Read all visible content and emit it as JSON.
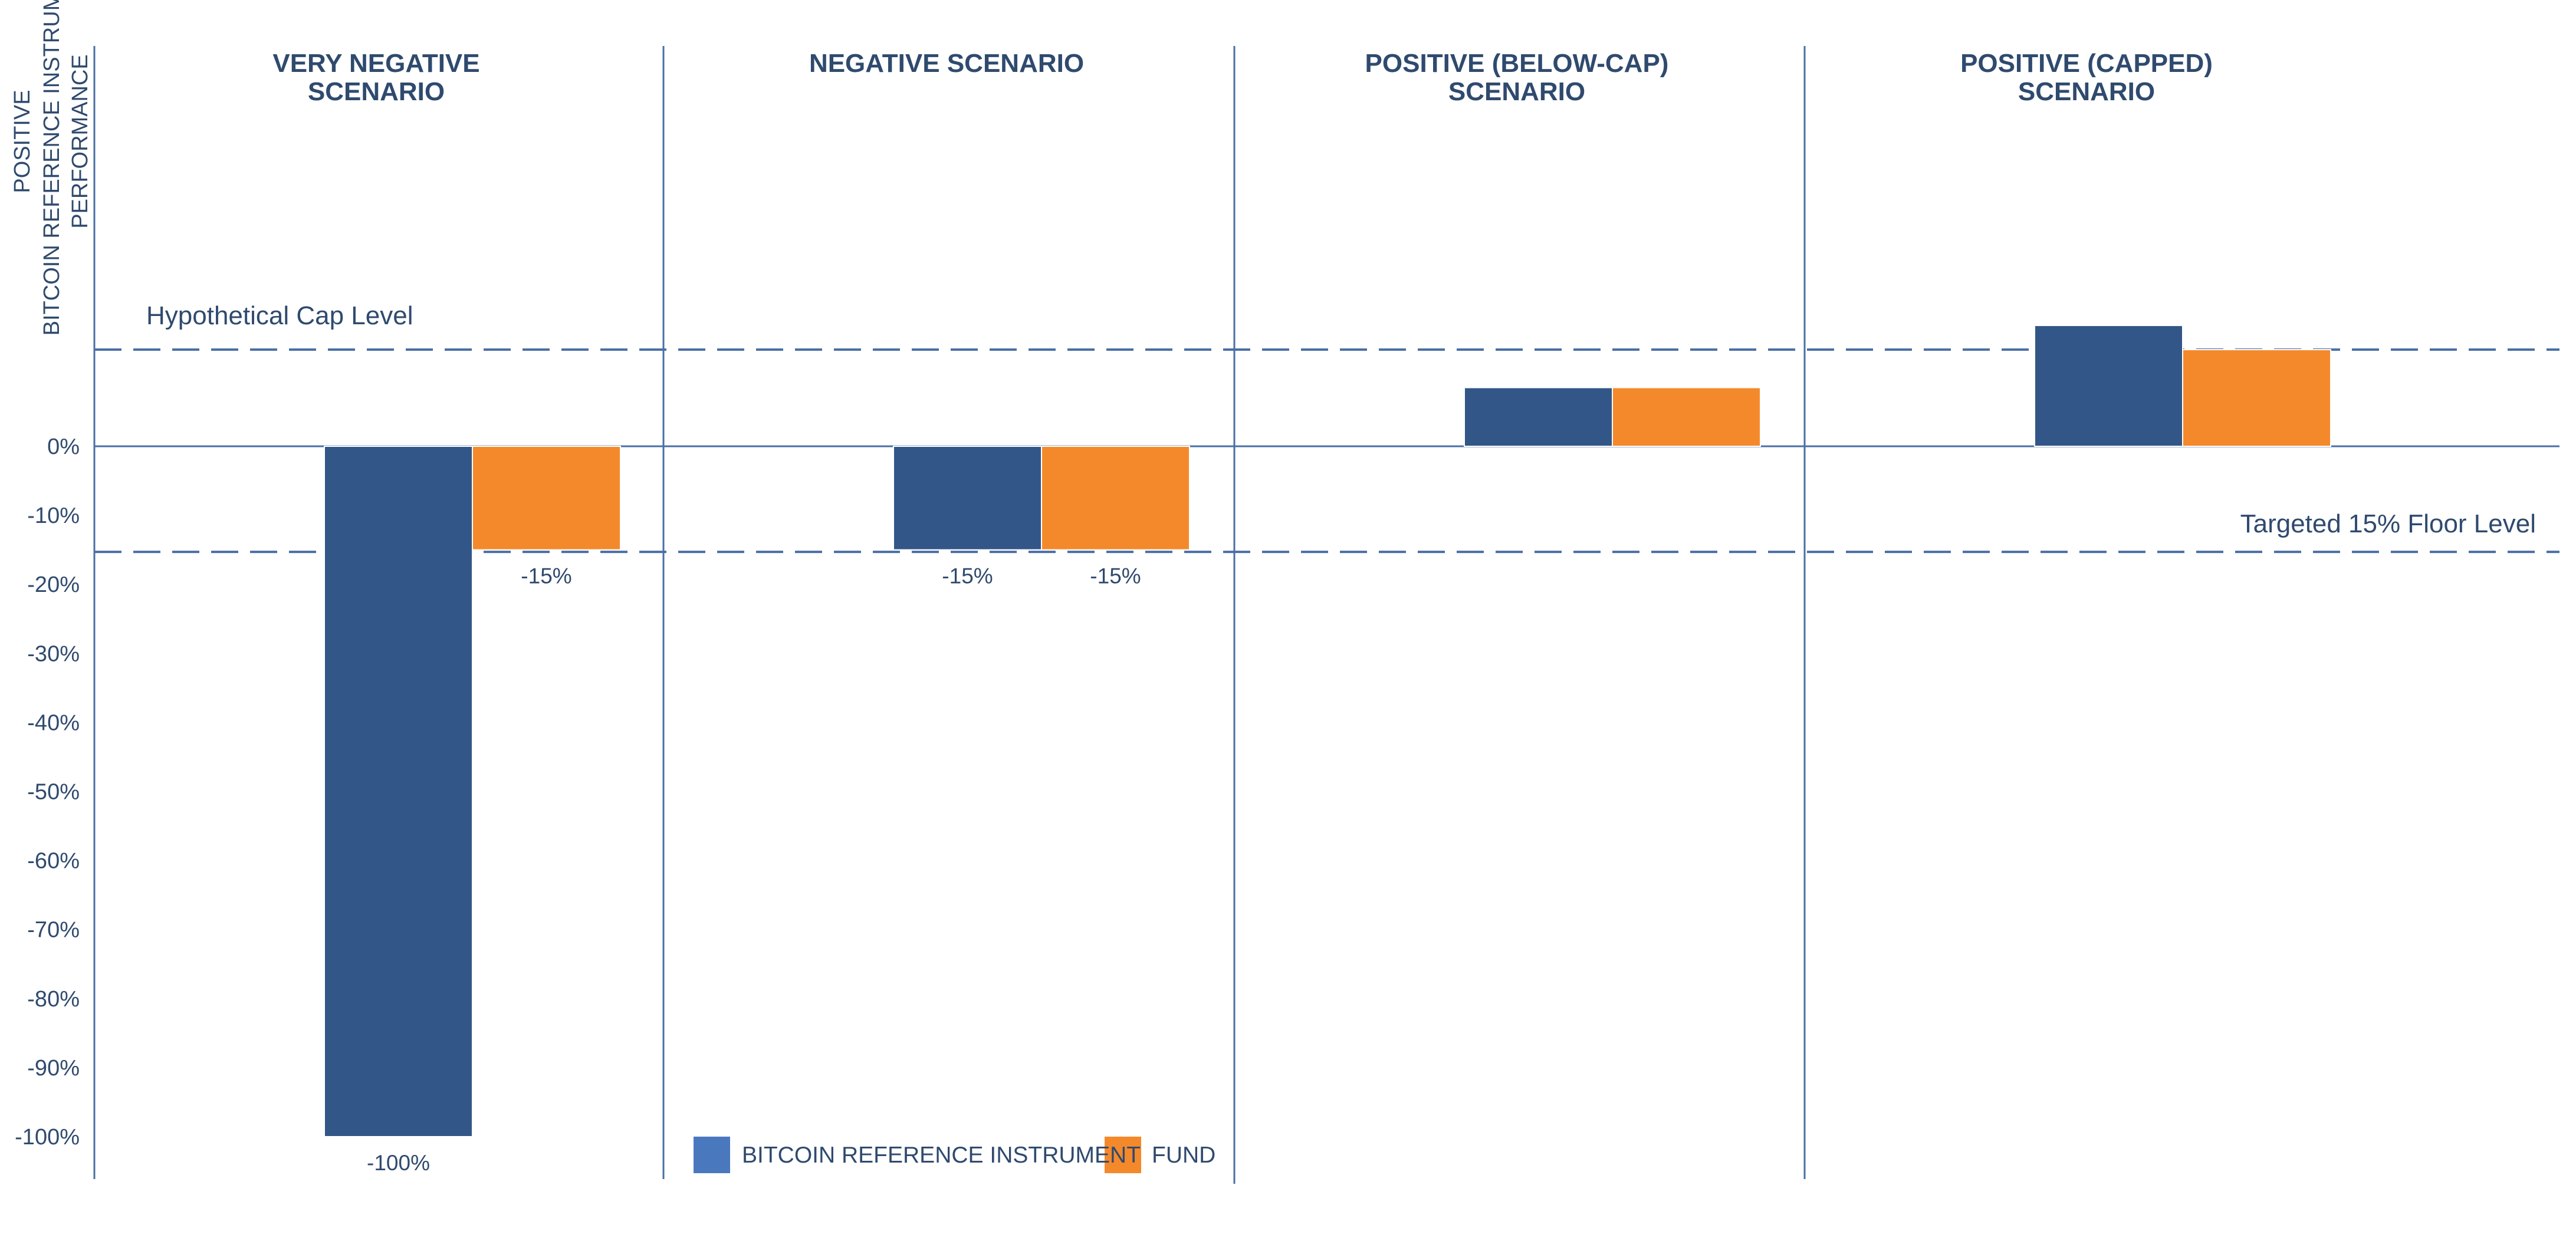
{
  "chart_data": {
    "type": "bar",
    "ylabel_lines": [
      "POSITIVE",
      "BITCOIN REFERENCE INSTRUMENT",
      "PERFORMANCE"
    ],
    "y_ticks": [
      "0%",
      "-10%",
      "-20%",
      "-30%",
      "-40%",
      "-50%",
      "-60%",
      "-70%",
      "-80%",
      "-90%",
      "-100%"
    ],
    "ylim": [
      -100,
      20
    ],
    "categories": [
      {
        "title_lines": [
          "VERY NEGATIVE",
          "SCENARIO"
        ]
      },
      {
        "title_lines": [
          "NEGATIVE SCENARIO"
        ]
      },
      {
        "title_lines": [
          "POSITIVE (BELOW-CAP)",
          "SCENARIO"
        ]
      },
      {
        "title_lines": [
          "POSITIVE (CAPPED)",
          "SCENARIO"
        ]
      }
    ],
    "series": [
      {
        "name": "BITCOIN REFERENCE INSTRUMENT",
        "color": "#325687",
        "values": [
          -100,
          -15,
          8.5,
          17.5
        ],
        "labels": [
          "-100%",
          "-15%",
          "",
          ""
        ]
      },
      {
        "name": "FUND",
        "color": "#f4892b",
        "values": [
          -15,
          -15,
          8.5,
          14
        ],
        "labels": [
          "-15%",
          "-15%",
          "",
          ""
        ]
      }
    ],
    "reference_lines": [
      {
        "label": "Hypothetical Cap Level",
        "value": 14
      },
      {
        "label": "Targeted 15% Floor Level",
        "value": -15.3
      }
    ],
    "colors": {
      "axis": "#4a6fa5",
      "text": "#2f4a6e",
      "legend_bitcoin": "#4a78be",
      "fund": "#f4892b"
    },
    "legend": {
      "position": "bottom-center"
    },
    "grid": false
  }
}
